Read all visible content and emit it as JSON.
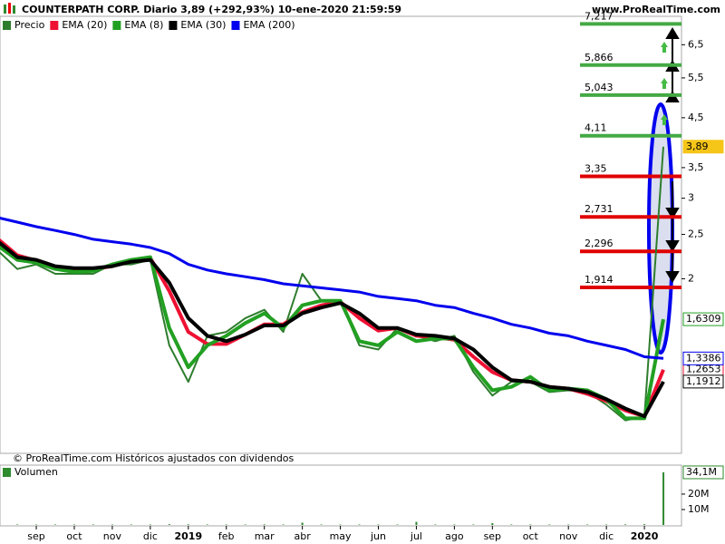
{
  "chart_data": [
    {
      "type": "line",
      "title": "COUNTERPATH CORP. Diario 3,89 (+292,93%) 10-ene-2020 21:59:59",
      "source": "www.ProRealTime.com",
      "note": "© ProRealTime.com Históricos ajustados con dividendos",
      "log_scale": true,
      "ylim": [
        0.83,
        7.5
      ],
      "yticks": [
        {
          "value": 6.5,
          "label": "6,5"
        },
        {
          "value": 5.5,
          "label": "5,5"
        },
        {
          "value": 4.5,
          "label": "4,5"
        },
        {
          "value": 3.5,
          "label": "3,5"
        },
        3,
        {
          "value": 2.5,
          "label": "2,5"
        },
        2
      ],
      "categories": [
        null,
        null,
        "sep",
        null,
        "oct",
        null,
        "nov",
        null,
        "dic",
        null,
        "2019",
        null,
        "feb",
        null,
        "mar",
        null,
        "abr",
        null,
        "may",
        null,
        "jun",
        null,
        "jul",
        null,
        "ago",
        null,
        "sep",
        null,
        "oct",
        null,
        "nov",
        null,
        "dic",
        null,
        "2020",
        null
      ],
      "series": [
        {
          "name": "Precio",
          "color": "#2e7d2e",
          "last_label": "3,89",
          "values": [
            2.3,
            2.1,
            2.15,
            2.05,
            2.05,
            2.05,
            2.15,
            2.15,
            2.2,
            1.43,
            1.19,
            1.5,
            1.53,
            1.64,
            1.71,
            1.53,
            2.05,
            1.79,
            1.79,
            1.43,
            1.4,
            1.56,
            1.5,
            1.46,
            1.5,
            1.25,
            1.11,
            1.19,
            1.19,
            1.13,
            1.14,
            1.13,
            1.06,
            0.98,
            1.0,
            3.89
          ]
        },
        {
          "name": "EMA (20)",
          "color": "#ee1133",
          "last_label": "1,2653",
          "values": [
            2.44,
            2.25,
            2.19,
            2.12,
            2.1,
            2.1,
            2.13,
            2.19,
            2.22,
            1.88,
            1.53,
            1.44,
            1.44,
            1.51,
            1.59,
            1.59,
            1.69,
            1.75,
            1.78,
            1.64,
            1.54,
            1.56,
            1.5,
            1.49,
            1.47,
            1.35,
            1.25,
            1.2,
            1.19,
            1.16,
            1.15,
            1.12,
            1.08,
            1.03,
            1.0,
            1.2653
          ]
        },
        {
          "name": "EMA (8)",
          "color": "#22a022",
          "last_label": "1,6309",
          "values": [
            2.36,
            2.2,
            2.17,
            2.1,
            2.07,
            2.08,
            2.15,
            2.2,
            2.23,
            1.56,
            1.28,
            1.43,
            1.5,
            1.6,
            1.68,
            1.56,
            1.75,
            1.79,
            1.79,
            1.46,
            1.43,
            1.53,
            1.46,
            1.48,
            1.48,
            1.28,
            1.14,
            1.16,
            1.22,
            1.14,
            1.15,
            1.14,
            1.09,
            0.99,
            0.99,
            1.6309
          ]
        },
        {
          "name": "EMA (30)",
          "color": "#000000",
          "last_label": "1,1912",
          "values": [
            2.41,
            2.23,
            2.2,
            2.13,
            2.11,
            2.11,
            2.13,
            2.18,
            2.2,
            1.96,
            1.64,
            1.5,
            1.46,
            1.51,
            1.58,
            1.58,
            1.68,
            1.73,
            1.77,
            1.68,
            1.56,
            1.56,
            1.51,
            1.5,
            1.48,
            1.4,
            1.28,
            1.2,
            1.19,
            1.16,
            1.15,
            1.13,
            1.09,
            1.04,
            1.0,
            1.1912
          ]
        },
        {
          "name": "EMA (200)",
          "color": "#0000ee",
          "last_label": "1,3386",
          "values": [
            2.72,
            2.66,
            2.6,
            2.55,
            2.5,
            2.44,
            2.41,
            2.38,
            2.34,
            2.27,
            2.15,
            2.09,
            2.05,
            2.02,
            1.99,
            1.95,
            1.93,
            1.91,
            1.89,
            1.87,
            1.83,
            1.81,
            1.79,
            1.75,
            1.73,
            1.68,
            1.64,
            1.59,
            1.56,
            1.52,
            1.5,
            1.46,
            1.43,
            1.4,
            1.35,
            1.3386
          ]
        }
      ],
      "levels": [
        {
          "value": 7.217,
          "label": "7,217",
          "color": "#44aa44"
        },
        {
          "value": 5.866,
          "label": "5,866",
          "color": "#44aa44"
        },
        {
          "value": 5.043,
          "label": "5,043",
          "color": "#44aa44"
        },
        {
          "value": 4.11,
          "label": "4,11",
          "color": "#44aa44"
        },
        {
          "value": 3.35,
          "label": "3,35",
          "color": "#e00000"
        },
        {
          "value": 2.731,
          "label": "2,731",
          "color": "#e00000"
        },
        {
          "value": 2.296,
          "label": "2,296",
          "color": "#e00000"
        },
        {
          "value": 1.914,
          "label": "1,914",
          "color": "#e00000"
        }
      ]
    },
    {
      "type": "bar",
      "ylim": [
        0,
        37.6
      ],
      "yticks": [
        {
          "value": 10,
          "label": "10M"
        },
        {
          "value": 20,
          "label": "20M"
        }
      ],
      "series": [
        {
          "name": "Volumen",
          "color": "#2e8b2e",
          "last_label": "34,1M",
          "values": [
            0.3,
            0.3,
            0.3,
            0.3,
            0.3,
            0.3,
            0.3,
            0.3,
            0.3,
            0.5,
            0.4,
            0.3,
            0.3,
            0.3,
            0.4,
            0.3,
            1.5,
            0.3,
            0.3,
            0.3,
            0.3,
            0.3,
            2.0,
            0.3,
            0.3,
            0.3,
            1.2,
            0.3,
            0.3,
            0.3,
            0.3,
            0.3,
            0.3,
            0.4,
            0.5,
            34.1
          ]
        }
      ]
    }
  ]
}
